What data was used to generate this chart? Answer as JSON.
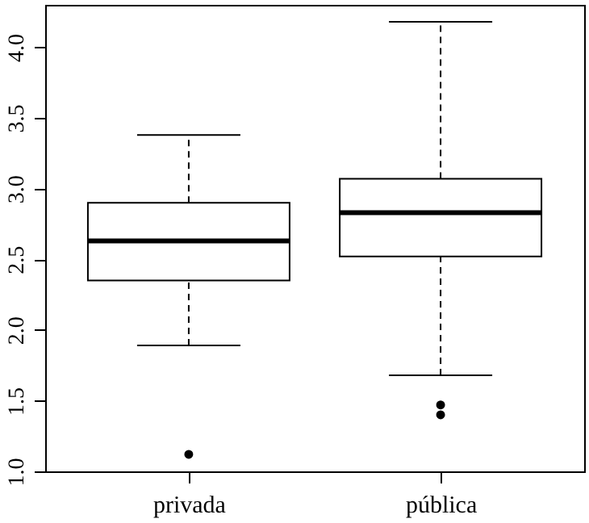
{
  "chart_data": {
    "type": "box",
    "categories": [
      "privada",
      "pública"
    ],
    "boxes": [
      {
        "low": 1.89,
        "q1": 2.35,
        "median": 2.63,
        "q3": 2.9,
        "high": 3.38,
        "outliers": [
          1.12
        ]
      },
      {
        "low": 1.68,
        "q1": 2.52,
        "median": 2.83,
        "q3": 3.07,
        "high": 4.18,
        "outliers": [
          1.47,
          1.4
        ]
      }
    ],
    "ylim": [
      1.0,
      4.3
    ],
    "yticks": [
      {
        "value": 1,
        "label": "1.0"
      },
      {
        "value": 1.5,
        "label": "1.5"
      },
      {
        "value": 2,
        "label": "2.0"
      },
      {
        "value": 2.5,
        "label": "2.5"
      },
      {
        "value": 3,
        "label": "3.0"
      },
      {
        "value": 3.5,
        "label": "3.5"
      },
      {
        "value": 4,
        "label": "4.0"
      }
    ],
    "grid": false
  }
}
